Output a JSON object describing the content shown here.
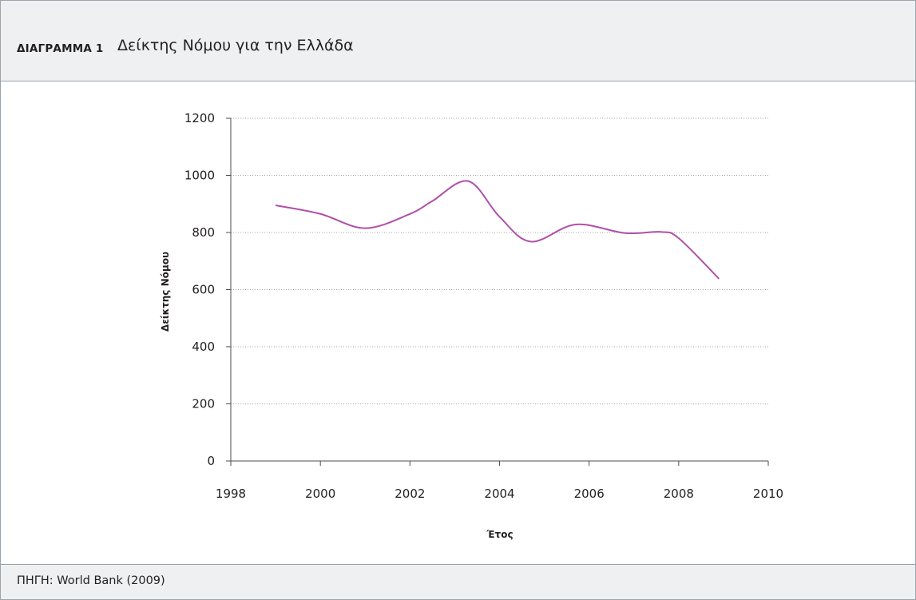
{
  "header": {
    "label": "ΔΙΑΓΡΑΜΜΑ 1",
    "title": "Δείκτης Νόμου για την Ελλάδα"
  },
  "footer": {
    "source": "ΠΗΓΗ: World Bank (2009)"
  },
  "chart_data": {
    "type": "line",
    "title": "Δείκτης Νόμου για την Ελλάδα",
    "xlabel": "Έτος",
    "ylabel": "Δείκτης Νόμου",
    "xlim": [
      1998,
      2010
    ],
    "ylim": [
      0,
      1200
    ],
    "x_ticks": [
      1998,
      2000,
      2002,
      2004,
      2006,
      2008,
      2010
    ],
    "y_ticks": [
      0,
      200,
      400,
      600,
      800,
      1000,
      1200
    ],
    "grid": "horizontal dotted",
    "line_color": "#b04fa8",
    "series": [
      {
        "x": [
          1999.0,
          2000.0,
          2001.0,
          2002.0,
          2002.5,
          2003.3,
          2004.0,
          2004.7,
          2005.7,
          2006.8,
          2007.6,
          2008.0,
          2008.9
        ],
        "values": [
          895,
          865,
          815,
          865,
          910,
          980,
          855,
          768,
          828,
          798,
          802,
          780,
          638
        ]
      }
    ]
  }
}
